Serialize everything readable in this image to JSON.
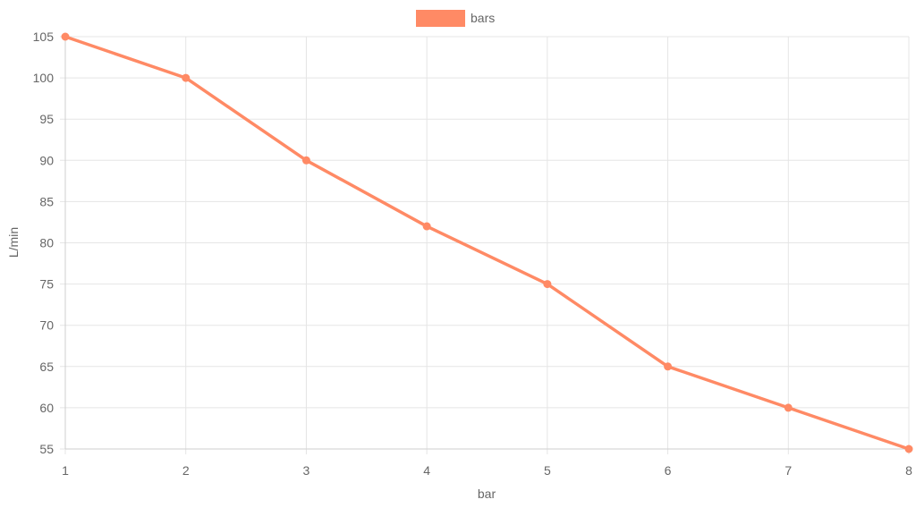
{
  "chart_data": {
    "type": "line",
    "x": [
      1,
      2,
      3,
      4,
      5,
      6,
      7,
      8
    ],
    "series": [
      {
        "name": "bars",
        "color": "#ff8a65",
        "values": [
          105,
          100,
          90,
          82,
          75,
          65,
          60,
          55
        ]
      }
    ],
    "xlabel": "bar",
    "ylabel": "L/min",
    "xlim": [
      1,
      8
    ],
    "ylim": [
      55,
      105
    ],
    "x_ticks": [
      "1",
      "2",
      "3",
      "4",
      "5",
      "6",
      "7",
      "8"
    ],
    "y_ticks": [
      "55",
      "60",
      "65",
      "70",
      "75",
      "80",
      "85",
      "90",
      "95",
      "100",
      "105"
    ],
    "grid": true,
    "legend_position": "top-center"
  }
}
